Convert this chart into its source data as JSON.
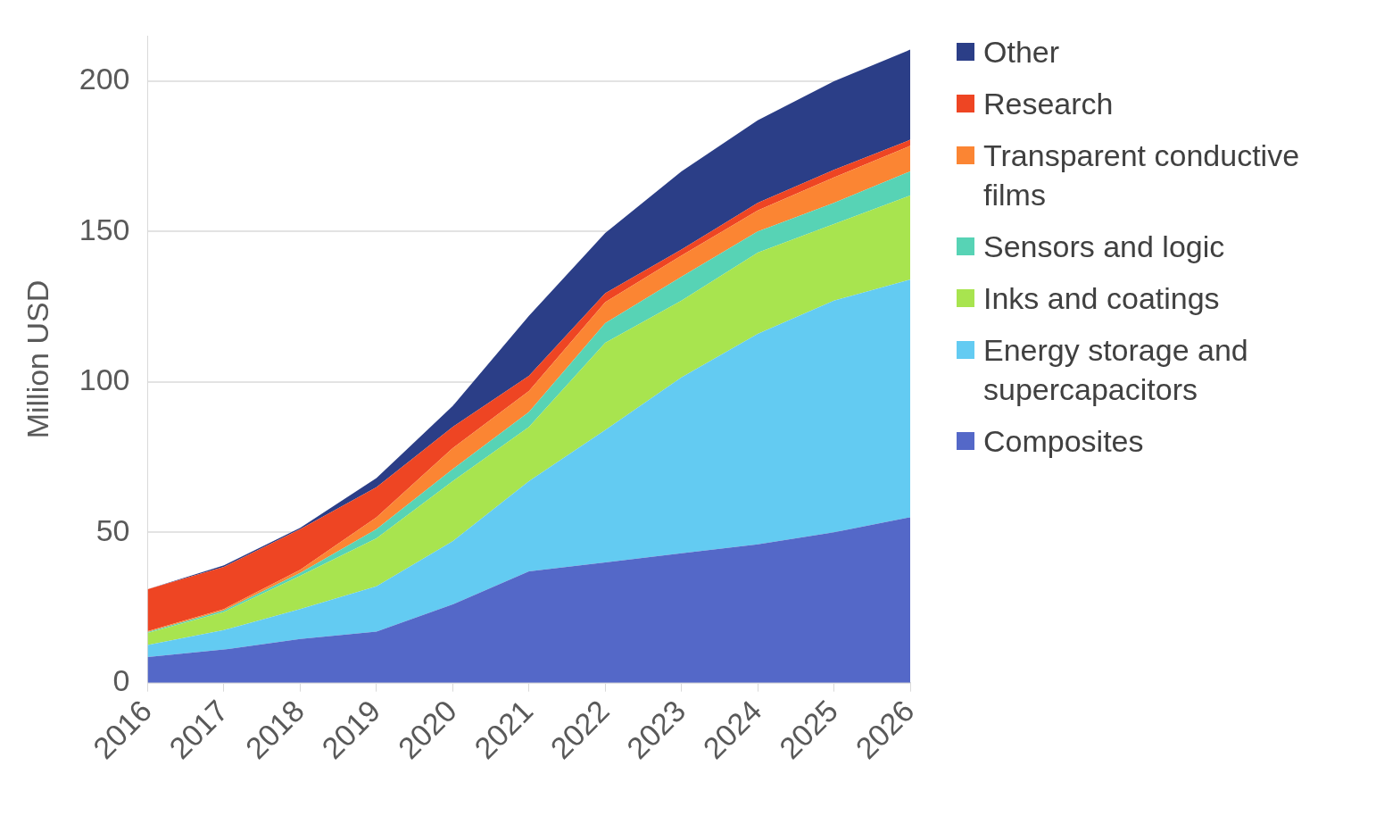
{
  "chart_data": {
    "type": "area",
    "stacked": true,
    "ylabel": "Million USD",
    "categories": [
      "2016",
      "2017",
      "2018",
      "2019",
      "2020",
      "2021",
      "2022",
      "2023",
      "2024",
      "2025",
      "2026"
    ],
    "ylim": [
      0,
      215
    ],
    "yticks": [
      0,
      50,
      100,
      150,
      200
    ],
    "grid": "y",
    "legend": "right",
    "series": [
      {
        "name": "Composites",
        "color": "#5468c8",
        "values": [
          8.5,
          11,
          14.5,
          17,
          26,
          37,
          40,
          43,
          46,
          50,
          55
        ]
      },
      {
        "name": "Energy storage and supercapacitors",
        "color": "#63cbf2",
        "values": [
          4,
          6.5,
          10,
          15,
          21,
          30,
          44,
          58.5,
          70,
          77,
          79
        ]
      },
      {
        "name": "Inks and coatings",
        "color": "#a8e44f",
        "values": [
          4,
          6,
          11,
          16,
          20,
          18,
          29,
          25.5,
          27,
          25.5,
          28
        ]
      },
      {
        "name": "Sensors and logic",
        "color": "#57d3b5",
        "values": [
          0.3,
          0.5,
          1,
          3,
          4,
          5,
          6.5,
          8,
          7,
          7,
          8
        ]
      },
      {
        "name": "Transparent conductive films",
        "color": "#fb8533",
        "values": [
          0.3,
          0.5,
          1,
          4,
          7,
          7,
          7,
          7,
          7,
          8.5,
          8.5
        ]
      },
      {
        "name": "Research",
        "color": "#ee4523",
        "values": [
          14,
          14,
          13.5,
          10,
          7,
          5,
          3,
          2,
          2.5,
          2.5,
          2
        ]
      },
      {
        "name": "Other",
        "color": "#2b3e87",
        "values": [
          0,
          0.5,
          0.5,
          3,
          7,
          20,
          20,
          26,
          27.5,
          29.5,
          30
        ]
      }
    ]
  }
}
